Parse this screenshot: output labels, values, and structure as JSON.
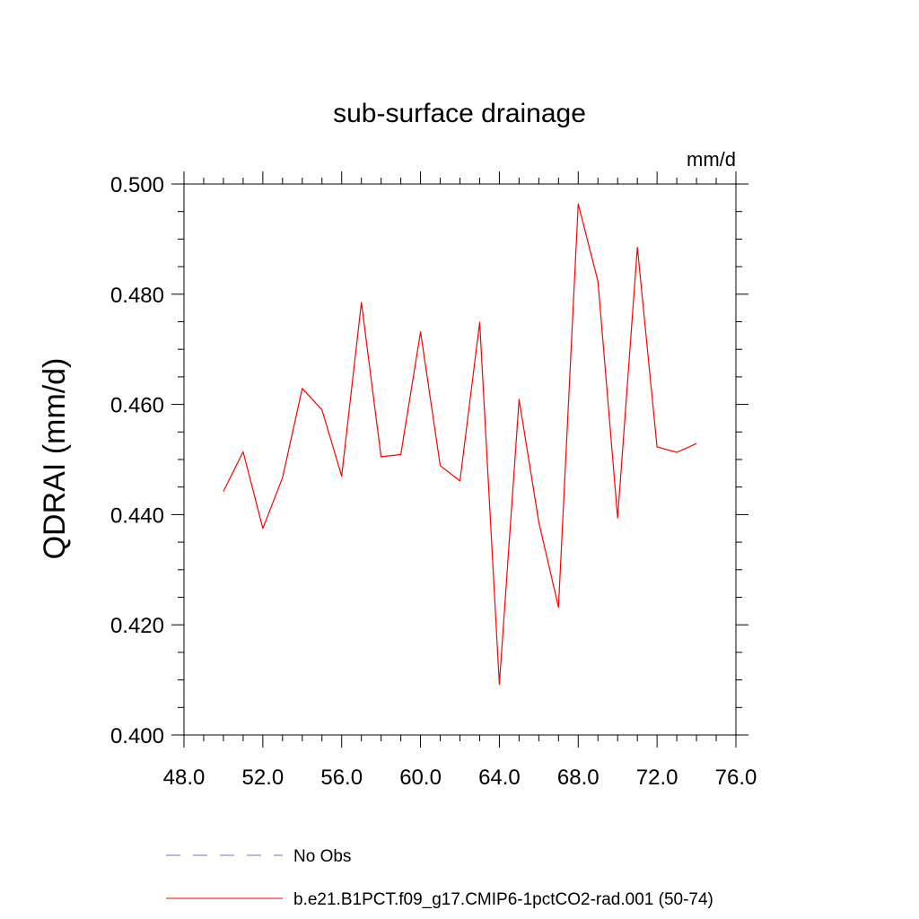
{
  "chart_data": {
    "type": "line",
    "title": "sub-surface drainage",
    "units_label": "mm/d",
    "ylabel": "QDRAI  (mm/d)",
    "xlabel": "",
    "xlim": [
      48,
      76
    ],
    "ylim": [
      0.4,
      0.5
    ],
    "x_ticks": [
      48,
      52,
      56,
      60,
      64,
      68,
      72,
      76
    ],
    "x_tick_labels": [
      "48.0",
      "52.0",
      "56.0",
      "60.0",
      "64.0",
      "68.0",
      "72.0",
      "76.0"
    ],
    "y_ticks": [
      0.4,
      0.42,
      0.44,
      0.46,
      0.48,
      0.5
    ],
    "y_tick_labels": [
      "0.400",
      "0.420",
      "0.440",
      "0.460",
      "0.480",
      "0.500"
    ],
    "grid": false,
    "legend_position": "bottom",
    "series": [
      {
        "name": "No Obs",
        "color": "#7b6fd0",
        "style": "dashed",
        "x": [],
        "y": []
      },
      {
        "name": "b.e21.B1PCT.f09_g17.CMIP6-1pctCO2-rad.001 (50-74)",
        "color": "#ff0000",
        "style": "solid",
        "x": [
          50,
          51,
          52,
          53,
          54,
          55,
          56,
          57,
          58,
          59,
          60,
          61,
          62,
          63,
          64,
          65,
          66,
          67,
          68,
          69,
          70,
          71,
          72,
          73,
          74
        ],
        "y": [
          0.4442,
          0.4514,
          0.4375,
          0.4467,
          0.4629,
          0.459,
          0.447,
          0.4785,
          0.4505,
          0.4509,
          0.4732,
          0.4489,
          0.4461,
          0.4749,
          0.4092,
          0.4609,
          0.4386,
          0.4232,
          0.4964,
          0.4823,
          0.4394,
          0.4885,
          0.4523,
          0.4513,
          0.4529
        ]
      }
    ]
  }
}
